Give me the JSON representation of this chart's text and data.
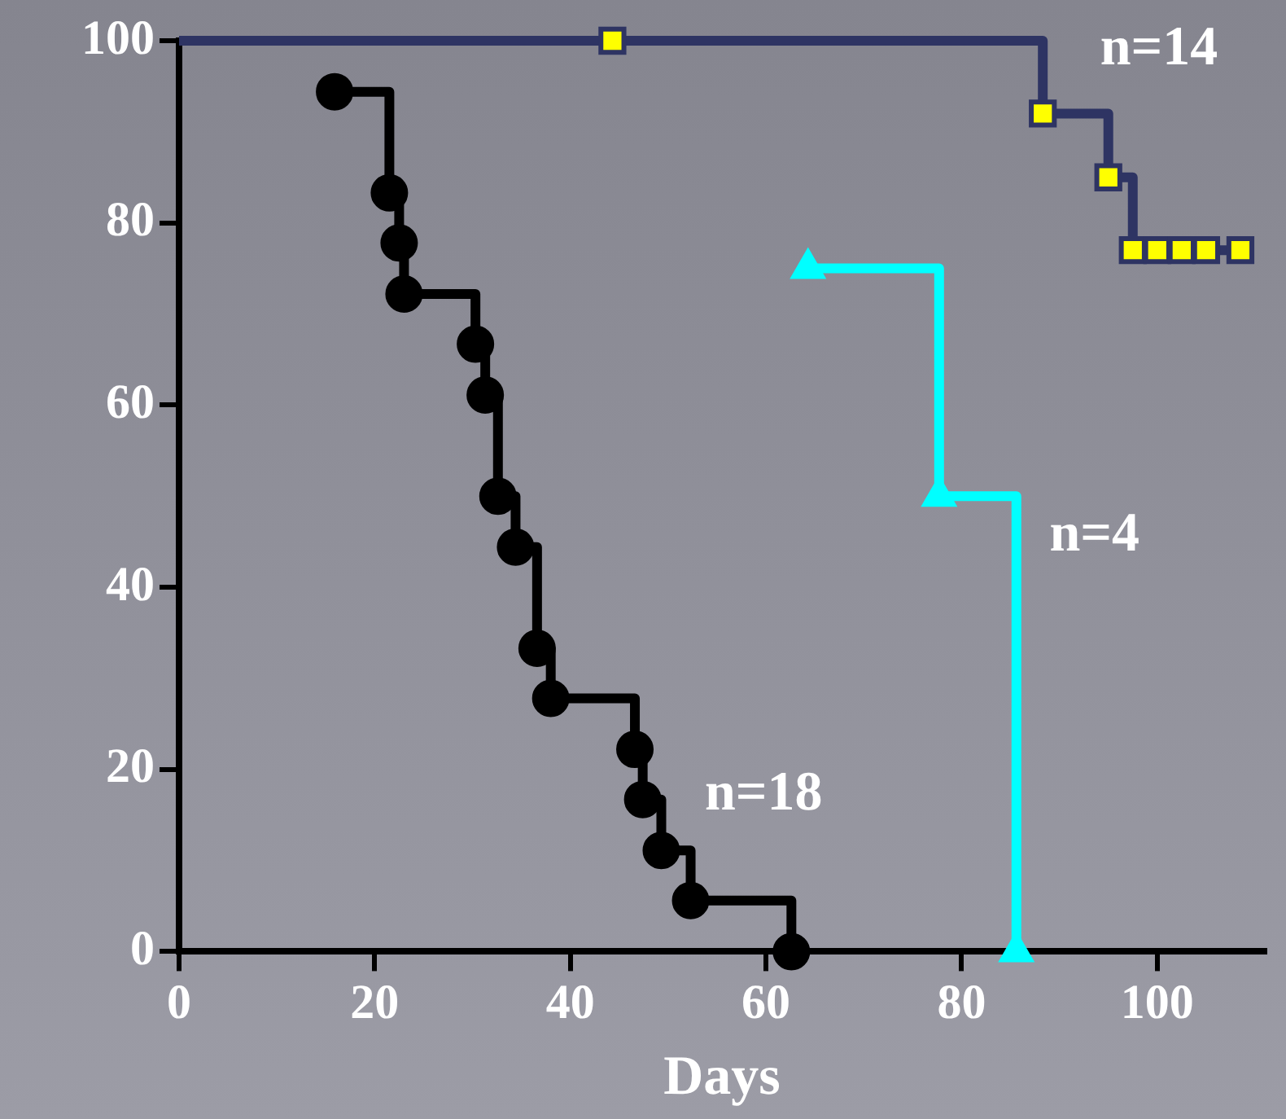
{
  "chart_data": {
    "type": "step",
    "xlabel": "Days",
    "xlim": [
      0,
      111
    ],
    "ylim": [
      0,
      100
    ],
    "xticks": [
      0,
      20,
      40,
      60,
      80,
      100
    ],
    "yticks": [
      0,
      20,
      40,
      60,
      80,
      100
    ],
    "legend": false,
    "series": [
      {
        "name": "n=18",
        "color": "#000000",
        "marker": "circle",
        "x": [
          15.9,
          21.5,
          22.5,
          23,
          30.3,
          31.3,
          32.6,
          34.4,
          36.6,
          38,
          46.6,
          47.4,
          49.3,
          52.3,
          62.6
        ],
        "values": [
          94.4,
          83.3,
          77.8,
          72.2,
          66.7,
          61.1,
          50,
          44.4,
          33.3,
          27.8,
          22.2,
          16.7,
          11.1,
          5.6,
          0
        ]
      },
      {
        "name": "n=4",
        "color": "#00ffff",
        "marker": "triangle",
        "x": [
          64.3,
          77.7,
          85.6
        ],
        "values": [
          75,
          50,
          0
        ]
      },
      {
        "name": "n=14",
        "color": "#2e3463",
        "marker": "square",
        "colors": [
          "#ffff00",
          "#ffff00",
          "#ffff00",
          "#ffff00",
          "#ffff00",
          "#ffff00",
          "#ffff00",
          "#ffff00",
          "#ffff00"
        ],
        "x": [
          0,
          44.3,
          88.3,
          95,
          97.5,
          100,
          102.5,
          105,
          108.5
        ],
        "values": [
          100,
          100,
          92,
          85,
          77,
          77,
          77,
          77,
          77
        ]
      }
    ]
  }
}
